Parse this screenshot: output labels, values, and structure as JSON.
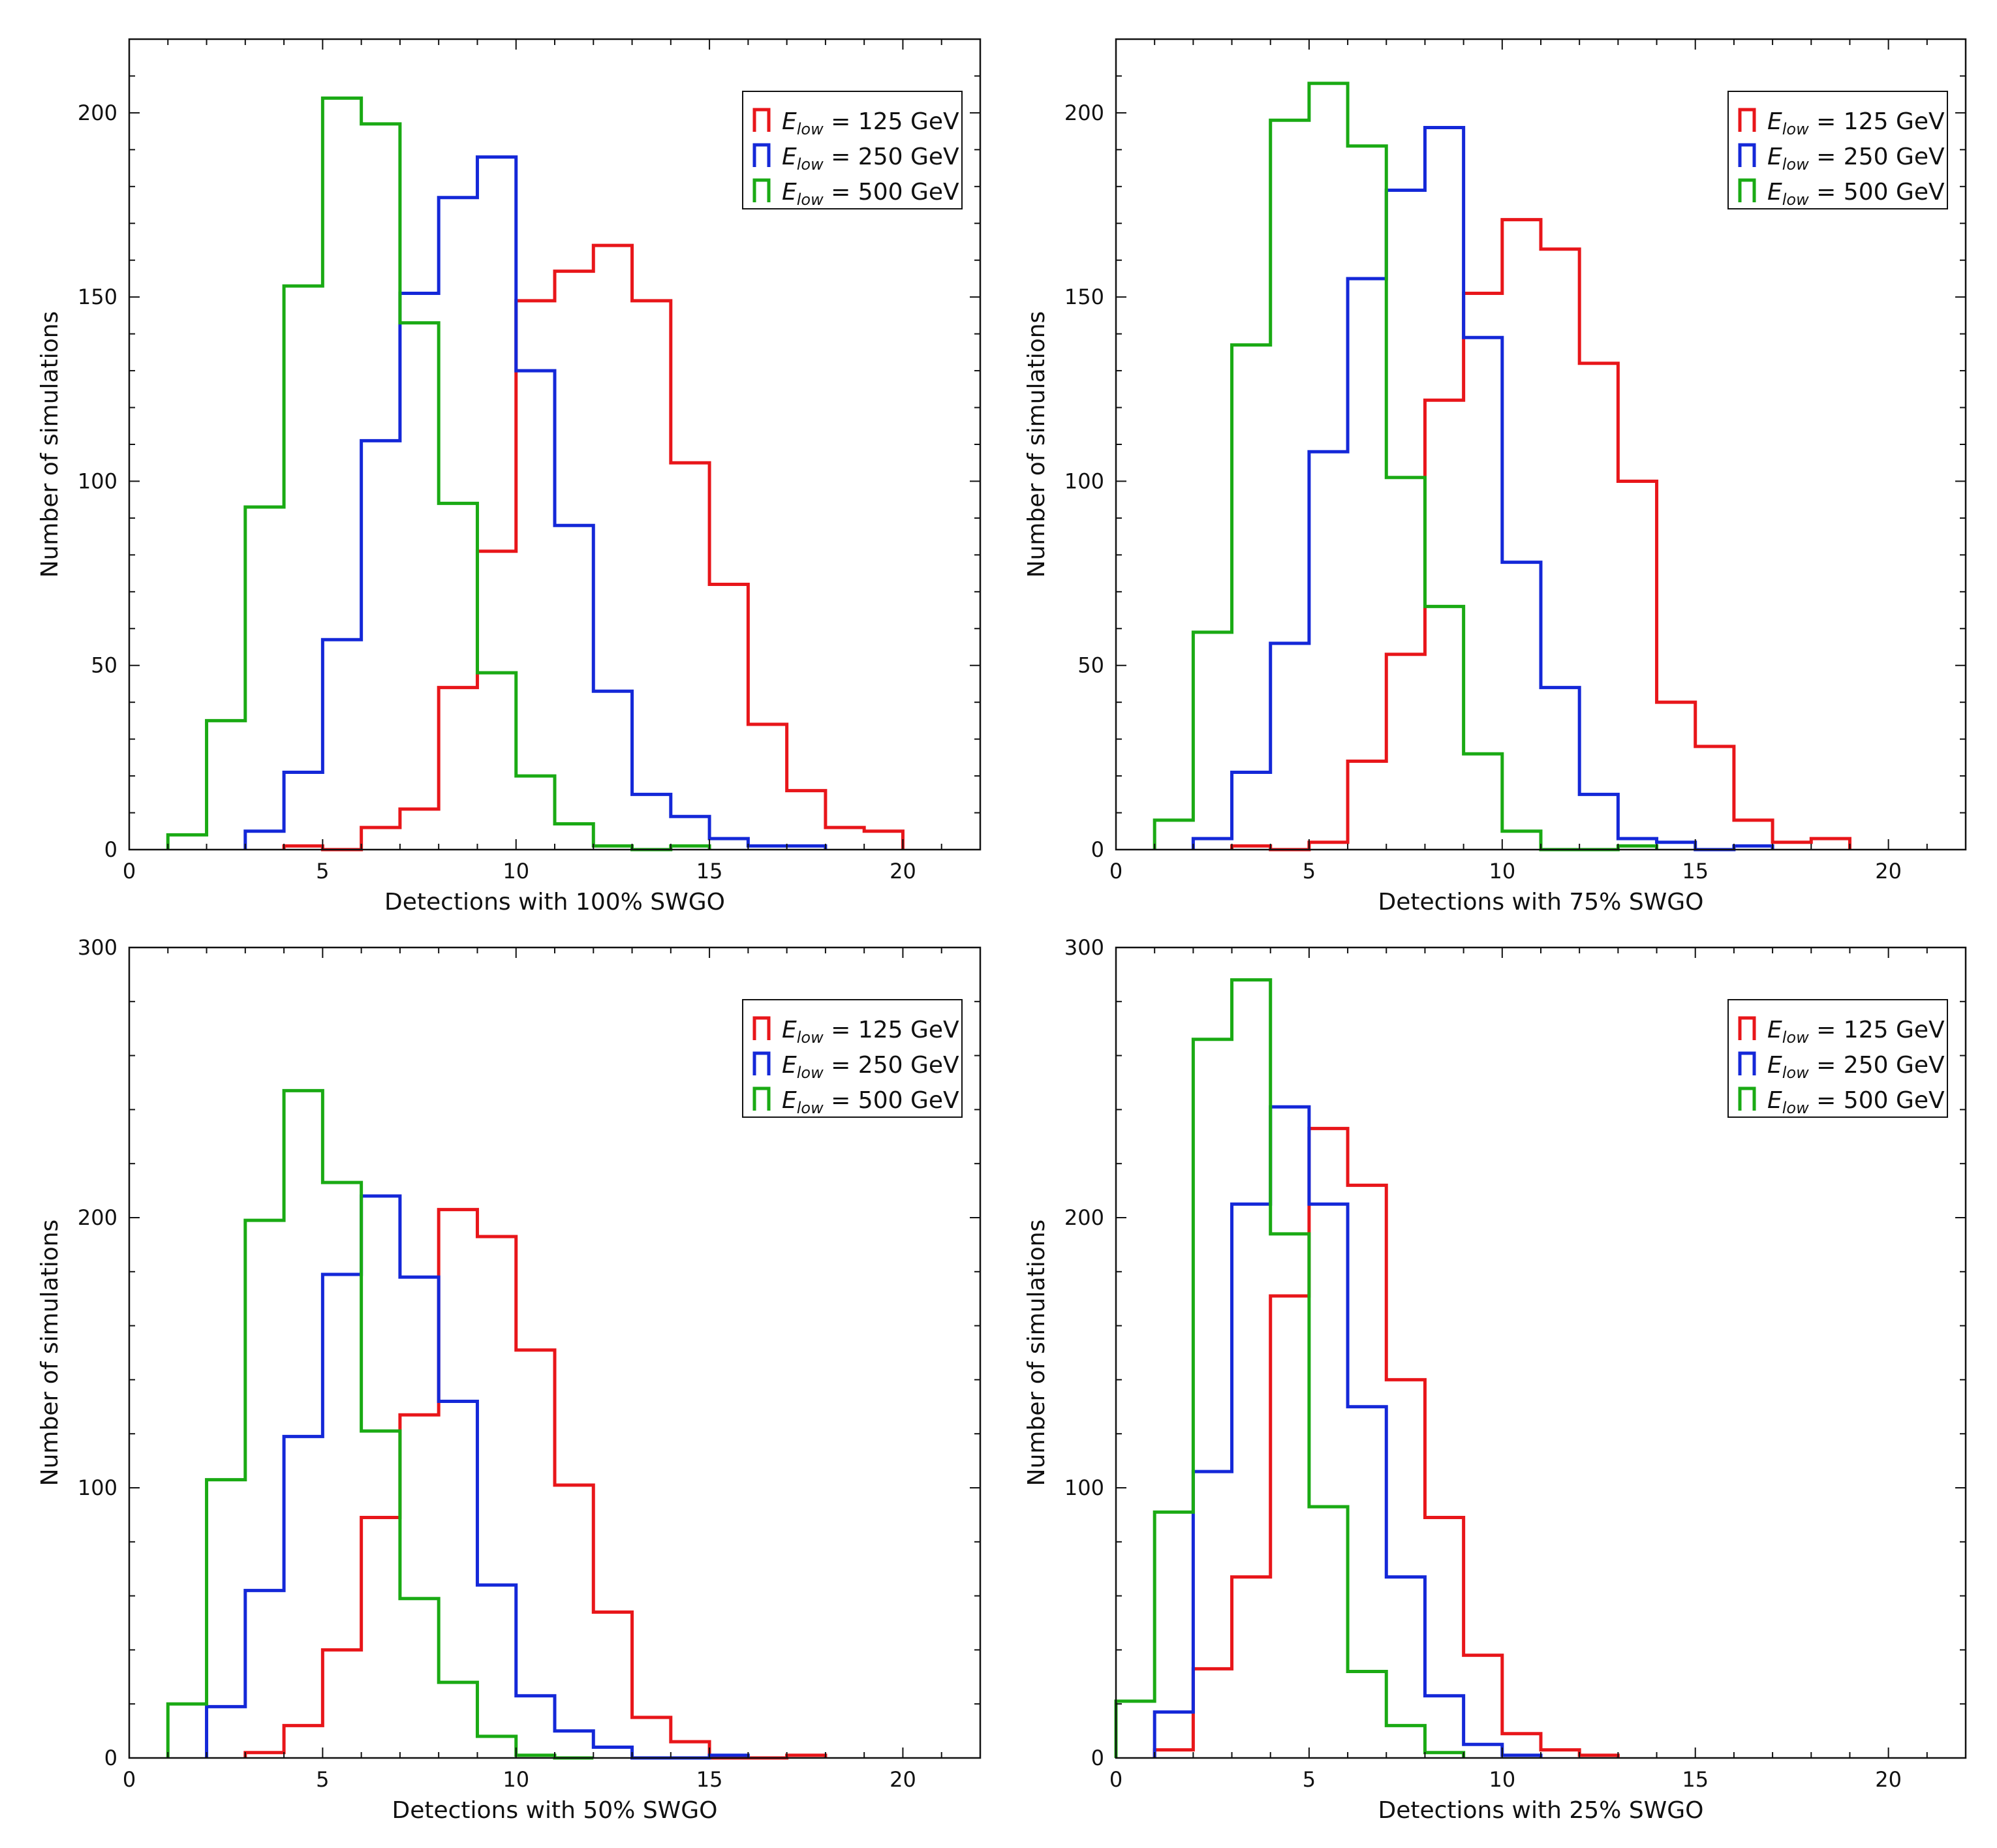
{
  "figure": {
    "legend_entries": [
      {
        "E": "E",
        "sub": "low",
        "rest": " = 125 GeV",
        "color": "#e8161a"
      },
      {
        "E": "E",
        "sub": "low",
        "rest": " = 250 GeV",
        "color": "#1428d8"
      },
      {
        "E": "E",
        "sub": "low",
        "rest": " = 500 GeV",
        "color": "#1aaa14"
      }
    ]
  },
  "chart_data": [
    {
      "type": "histogram",
      "xlabel": "Detections with 100% SWGO",
      "ylabel": "Number of simulations",
      "xlim": [
        0,
        22
      ],
      "ylim": [
        0,
        220
      ],
      "xticks": [
        0,
        5,
        10,
        15,
        20
      ],
      "yticks": [
        0,
        50,
        100,
        150,
        200
      ],
      "legend_position": "top-right",
      "series": [
        {
          "name": "E_low = 125 GeV",
          "color": "#e8161a",
          "steps": [
            [
              4,
              1
            ],
            [
              5,
              0
            ],
            [
              6,
              6
            ],
            [
              7,
              11
            ],
            [
              8,
              44
            ],
            [
              9,
              81
            ],
            [
              10,
              149
            ],
            [
              11,
              157
            ],
            [
              12,
              164
            ],
            [
              13,
              149
            ],
            [
              14,
              105
            ],
            [
              15,
              72
            ],
            [
              16,
              34
            ],
            [
              17,
              16
            ],
            [
              18,
              6
            ],
            [
              19,
              5
            ],
            [
              20,
              0
            ]
          ]
        },
        {
          "name": "E_low = 250 GeV",
          "color": "#1428d8",
          "steps": [
            [
              3,
              5
            ],
            [
              4,
              21
            ],
            [
              5,
              57
            ],
            [
              6,
              111
            ],
            [
              7,
              151
            ],
            [
              8,
              177
            ],
            [
              9,
              188
            ],
            [
              10,
              130
            ],
            [
              11,
              88
            ],
            [
              12,
              43
            ],
            [
              13,
              15
            ],
            [
              14,
              9
            ],
            [
              15,
              3
            ],
            [
              16,
              1
            ],
            [
              17,
              1
            ],
            [
              18,
              0
            ]
          ]
        },
        {
          "name": "E_low = 500 GeV",
          "color": "#1aaa14",
          "steps": [
            [
              1,
              4
            ],
            [
              2,
              35
            ],
            [
              3,
              93
            ],
            [
              4,
              153
            ],
            [
              5,
              204
            ],
            [
              6,
              197
            ],
            [
              7,
              143
            ],
            [
              8,
              94
            ],
            [
              9,
              48
            ],
            [
              10,
              20
            ],
            [
              11,
              7
            ],
            [
              12,
              1
            ],
            [
              13,
              0
            ],
            [
              14,
              1
            ],
            [
              15,
              0
            ]
          ]
        }
      ]
    },
    {
      "type": "histogram",
      "xlabel": "Detections with 75% SWGO",
      "ylabel": "Number of simulations",
      "xlim": [
        0,
        22
      ],
      "ylim": [
        0,
        220
      ],
      "xticks": [
        0,
        5,
        10,
        15,
        20
      ],
      "yticks": [
        0,
        50,
        100,
        150,
        200
      ],
      "legend_position": "top-right",
      "series": [
        {
          "name": "E_low = 125 GeV",
          "color": "#e8161a",
          "steps": [
            [
              3,
              1
            ],
            [
              4,
              0
            ],
            [
              5,
              2
            ],
            [
              6,
              24
            ],
            [
              7,
              53
            ],
            [
              8,
              122
            ],
            [
              9,
              151
            ],
            [
              10,
              171
            ],
            [
              11,
              163
            ],
            [
              12,
              132
            ],
            [
              13,
              100
            ],
            [
              14,
              40
            ],
            [
              15,
              28
            ],
            [
              16,
              8
            ],
            [
              17,
              2
            ],
            [
              18,
              3
            ],
            [
              19,
              0
            ]
          ]
        },
        {
          "name": "E_low = 250 GeV",
          "color": "#1428d8",
          "steps": [
            [
              2,
              3
            ],
            [
              3,
              21
            ],
            [
              4,
              56
            ],
            [
              5,
              108
            ],
            [
              6,
              155
            ],
            [
              7,
              179
            ],
            [
              8,
              196
            ],
            [
              9,
              139
            ],
            [
              10,
              78
            ],
            [
              11,
              44
            ],
            [
              12,
              15
            ],
            [
              13,
              3
            ],
            [
              14,
              2
            ],
            [
              15,
              0
            ],
            [
              16,
              1
            ],
            [
              17,
              0
            ]
          ]
        },
        {
          "name": "E_low = 500 GeV",
          "color": "#1aaa14",
          "steps": [
            [
              1,
              8
            ],
            [
              2,
              59
            ],
            [
              3,
              137
            ],
            [
              4,
              198
            ],
            [
              5,
              208
            ],
            [
              6,
              191
            ],
            [
              7,
              101
            ],
            [
              8,
              66
            ],
            [
              9,
              26
            ],
            [
              10,
              5
            ],
            [
              11,
              0
            ],
            [
              13,
              1
            ],
            [
              14,
              0
            ]
          ]
        }
      ]
    },
    {
      "type": "histogram",
      "xlabel": "Detections with 50% SWGO",
      "ylabel": "Number of simulations",
      "xlim": [
        0,
        22
      ],
      "ylim": [
        0,
        300
      ],
      "xticks": [
        0,
        5,
        10,
        15,
        20
      ],
      "yticks": [
        0,
        100,
        200,
        300
      ],
      "legend_position": "top-right",
      "series": [
        {
          "name": "E_low = 125 GeV",
          "color": "#e8161a",
          "steps": [
            [
              3,
              2
            ],
            [
              4,
              12
            ],
            [
              5,
              40
            ],
            [
              6,
              89
            ],
            [
              7,
              127
            ],
            [
              8,
              203
            ],
            [
              9,
              193
            ],
            [
              10,
              151
            ],
            [
              11,
              101
            ],
            [
              12,
              54
            ],
            [
              13,
              15
            ],
            [
              14,
              6
            ],
            [
              15,
              0
            ],
            [
              17,
              1
            ],
            [
              18,
              0
            ]
          ]
        },
        {
          "name": "E_low = 250 GeV",
          "color": "#1428d8",
          "steps": [
            [
              2,
              19
            ],
            [
              3,
              62
            ],
            [
              4,
              119
            ],
            [
              5,
              179
            ],
            [
              6,
              208
            ],
            [
              7,
              178
            ],
            [
              8,
              132
            ],
            [
              9,
              64
            ],
            [
              10,
              23
            ],
            [
              11,
              10
            ],
            [
              12,
              4
            ],
            [
              13,
              0
            ],
            [
              15,
              1
            ],
            [
              16,
              0
            ]
          ]
        },
        {
          "name": "E_low = 500 GeV",
          "color": "#1aaa14",
          "steps": [
            [
              1,
              20
            ],
            [
              2,
              103
            ],
            [
              3,
              199
            ],
            [
              4,
              247
            ],
            [
              5,
              213
            ],
            [
              6,
              121
            ],
            [
              7,
              59
            ],
            [
              8,
              28
            ],
            [
              9,
              8
            ],
            [
              10,
              1
            ],
            [
              11,
              0
            ],
            [
              12,
              0
            ]
          ]
        }
      ]
    },
    {
      "type": "histogram",
      "xlabel": "Detections with 25% SWGO",
      "ylabel": "Number of simulations",
      "xlim": [
        0,
        22
      ],
      "ylim": [
        0,
        300
      ],
      "xticks": [
        0,
        5,
        10,
        15,
        20
      ],
      "yticks": [
        0,
        100,
        200,
        300
      ],
      "legend_position": "top-right",
      "series": [
        {
          "name": "E_low = 125 GeV",
          "color": "#e8161a",
          "steps": [
            [
              1,
              3
            ],
            [
              2,
              33
            ],
            [
              3,
              67
            ],
            [
              4,
              171
            ],
            [
              5,
              233
            ],
            [
              6,
              212
            ],
            [
              7,
              140
            ],
            [
              8,
              89
            ],
            [
              9,
              38
            ],
            [
              10,
              9
            ],
            [
              11,
              3
            ],
            [
              12,
              1
            ],
            [
              13,
              0
            ]
          ]
        },
        {
          "name": "E_low = 250 GeV",
          "color": "#1428d8",
          "steps": [
            [
              1,
              17
            ],
            [
              2,
              106
            ],
            [
              3,
              205
            ],
            [
              4,
              241
            ],
            [
              5,
              205
            ],
            [
              6,
              130
            ],
            [
              7,
              67
            ],
            [
              8,
              23
            ],
            [
              9,
              5
            ],
            [
              10,
              1
            ],
            [
              11,
              0
            ]
          ]
        },
        {
          "name": "E_low = 500 GeV",
          "color": "#1aaa14",
          "steps": [
            [
              0,
              21
            ],
            [
              1,
              91
            ],
            [
              2,
              266
            ],
            [
              3,
              288
            ],
            [
              4,
              194
            ],
            [
              5,
              93
            ],
            [
              6,
              32
            ],
            [
              7,
              12
            ],
            [
              8,
              2
            ],
            [
              9,
              0
            ]
          ]
        }
      ]
    }
  ]
}
